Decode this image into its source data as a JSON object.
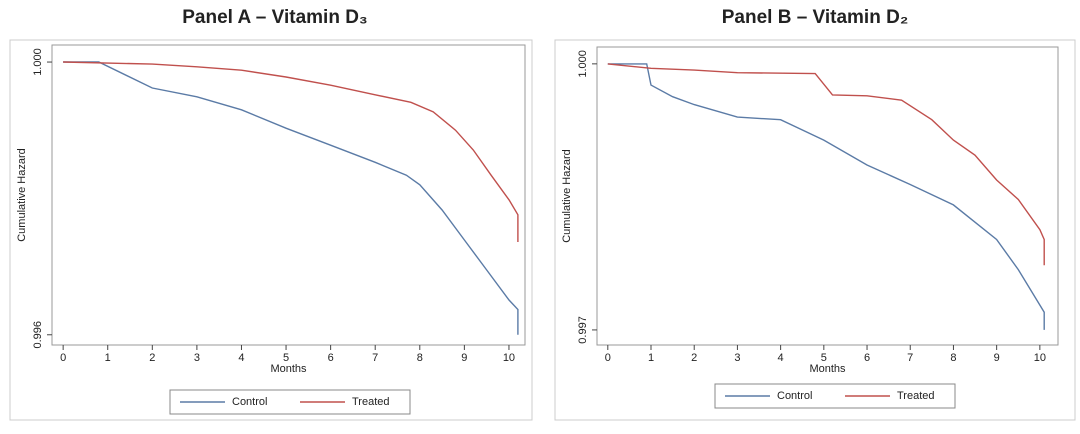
{
  "chart_data": [
    {
      "type": "line",
      "title": "Panel A – Vitamin D₃",
      "x_label": "Months",
      "y_label": "Cumulative Hazard",
      "xlim": [
        -0.25,
        10.36
      ],
      "ylim": [
        0.99585,
        1.00025
      ],
      "xticks": [
        0,
        1,
        2,
        3,
        4,
        5,
        6,
        7,
        8,
        9,
        10
      ],
      "yticks": [
        0.996,
        {
          "value": 1,
          "label": "1.000"
        }
      ],
      "series": [
        {
          "name": "Control",
          "color": "#5b7ba6",
          "x": [
            0,
            0.8,
            2,
            3,
            4,
            5,
            6,
            7,
            7.7,
            8,
            8.5,
            9,
            9.5,
            10,
            10.2,
            10.2
          ],
          "values": [
            1,
            1,
            0.99962,
            0.99949,
            0.9993,
            0.99903,
            0.99878,
            0.99853,
            0.99834,
            0.9982,
            0.99783,
            0.99739,
            0.99695,
            0.99651,
            0.99637,
            0.996
          ]
        },
        {
          "name": "Treated",
          "color": "#c0504d",
          "x": [
            0,
            2,
            3,
            4,
            5,
            6,
            7,
            7.8,
            8.3,
            8.8,
            9.2,
            9.6,
            10,
            10.2,
            10.2
          ],
          "values": [
            1,
            0.99997,
            0.99993,
            0.99988,
            0.99978,
            0.99966,
            0.99952,
            0.99941,
            0.99927,
            0.999,
            0.99871,
            0.99834,
            0.99798,
            0.99776,
            0.99736
          ]
        }
      ]
    },
    {
      "type": "line",
      "title": "Panel B – Vitamin D₂",
      "x_label": "Months",
      "y_label": "Cumulative Hazard",
      "xlim": [
        -0.25,
        10.42
      ],
      "ylim": [
        0.99683,
        1.00019
      ],
      "xticks": [
        0,
        1,
        2,
        3,
        4,
        5,
        6,
        7,
        8,
        9,
        10
      ],
      "yticks": [
        0.997,
        {
          "value": 1,
          "label": "1.000"
        }
      ],
      "series": [
        {
          "name": "Control",
          "color": "#5b7ba6",
          "x": [
            0,
            0.9,
            1,
            1.5,
            2,
            3,
            4,
            5,
            6,
            7,
            8,
            9,
            9.5,
            10,
            10.1,
            10.1
          ],
          "values": [
            1,
            1,
            0.99976,
            0.99963,
            0.99954,
            0.9994,
            0.99937,
            0.99914,
            0.99886,
            0.99864,
            0.99841,
            0.99802,
            0.99768,
            0.99728,
            0.9972,
            0.997
          ]
        },
        {
          "name": "Treated",
          "color": "#c0504d",
          "x": [
            0,
            1,
            2,
            3,
            4.8,
            5.2,
            6,
            6.8,
            7.5,
            8,
            8.5,
            9,
            9.5,
            10,
            10.1,
            10.1
          ],
          "values": [
            1,
            0.99995,
            0.99993,
            0.9999,
            0.99989,
            0.99965,
            0.99964,
            0.99959,
            0.99937,
            0.99914,
            0.99897,
            0.99869,
            0.99847,
            0.99813,
            0.99802,
            0.99773
          ]
        }
      ]
    }
  ]
}
